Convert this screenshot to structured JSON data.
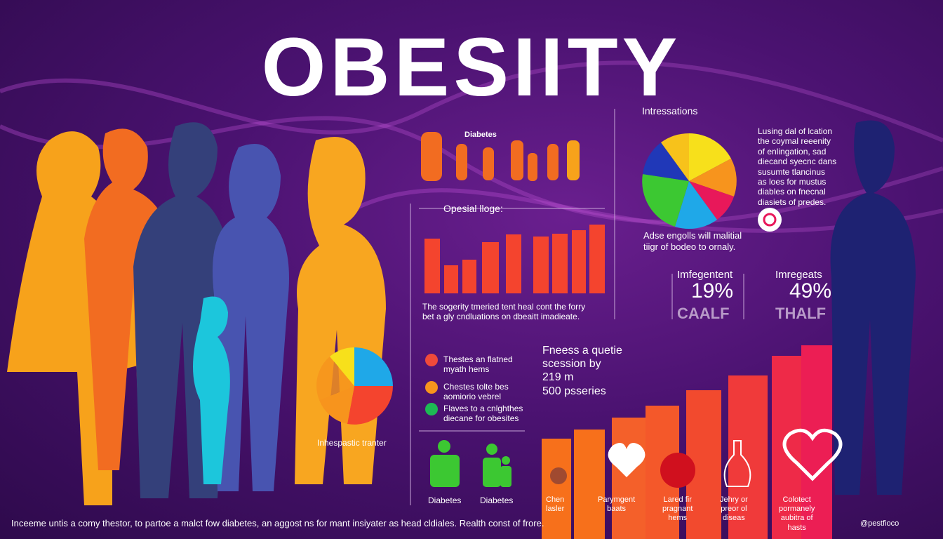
{
  "title": "OBESIITY",
  "figures_label": "Diabetes",
  "pie_panel": {
    "heading": "Intressations",
    "notes": [
      "Lusing dal of lcation",
      "the coymal reeenity",
      "of enlingation, sad",
      "diecand syecnc dans",
      "susumte tlancinus",
      "as loes for mustus",
      "diables on fnecnal",
      "diasiets of predes."
    ],
    "caption": [
      "Adse engolls will malitial",
      "tiigr of bodeo to ornaly."
    ]
  },
  "bar_panel": {
    "heading": "Opesial lloge:",
    "caption": [
      "The sogerity tmeried tent heal cont the forry",
      "bet a gly cndluations on dbeaitt imadieate."
    ]
  },
  "stats": [
    {
      "label": "Imfegentent",
      "value": "19%",
      "word": "CAALF"
    },
    {
      "label": "Imregeats",
      "value": "49%",
      "word": "THALF"
    }
  ],
  "legend": [
    {
      "text": [
        "Thestes an flatned",
        "myath hems"
      ],
      "color": "#f04a3a"
    },
    {
      "text": [
        "Chestes tolte bes",
        "aomiorio vebrel"
      ],
      "color": "#f7941d"
    },
    {
      "text": [
        "Flaves to a cnlghthes",
        "diecane for obesites"
      ],
      "color": "#1db954"
    }
  ],
  "fact": [
    "Fneess a quetie",
    "scession by",
    "219 m",
    "500 psseries"
  ],
  "pie_small_label": "Inhespastic tranter",
  "icons": [
    "Diabetes",
    "Diabetes"
  ],
  "bar_labels": [
    [
      "Chen",
      "lasler"
    ],
    [
      "Parymgent",
      "baats"
    ],
    [
      "Lared fir",
      "pragnant",
      "hems"
    ],
    [
      "Jehry or",
      "preor ol",
      "diseas"
    ],
    [
      "Colotect",
      "pormanely",
      "aubitra of",
      "hasts"
    ]
  ],
  "footer": "Inceeme untis a comy thestor, to partoe a malct fow diabetes, an aggost ns for mant insiyater as head cldiales. Realth const of frore.",
  "credit": "@pestfioco"
}
